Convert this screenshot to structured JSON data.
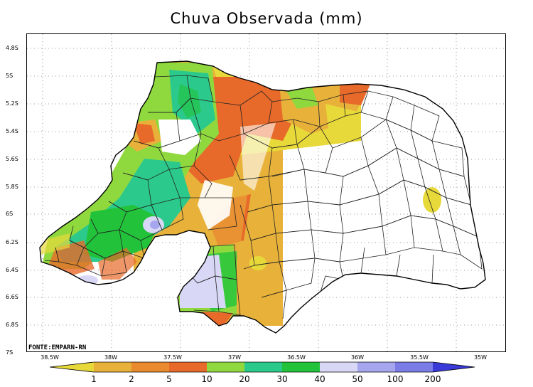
{
  "title": "Chuva Observada (mm)",
  "source": "FONTE:EMPARN-RN",
  "lat_ticks": [
    "4.8S",
    "5S",
    "5.2S",
    "5.4S",
    "5.6S",
    "5.8S",
    "6S",
    "6.2S",
    "6.4S",
    "6.6S",
    "6.8S",
    "7S"
  ],
  "lon_ticks": [
    "38.5W",
    "38W",
    "37.5W",
    "37W",
    "36.5W",
    "36W",
    "35.5W",
    "35W"
  ],
  "colorbar": {
    "labels": [
      "1",
      "2",
      "5",
      "10",
      "20",
      "30",
      "40",
      "50",
      "100",
      "200"
    ],
    "colors": [
      "#e8d93a",
      "#e8b23a",
      "#e98a2e",
      "#e86a2a",
      "#8fd93f",
      "#2cc98c",
      "#22c33b",
      "#d8d8f6",
      "#a6a6ee",
      "#7c7ce6",
      "#3a3ad8"
    ]
  },
  "map_colors": {
    "c1_2": "#e8d93a",
    "c2_5": "#e8b23a",
    "c5_10": "#e98a2e",
    "c10_20": "#e86a2a",
    "c20_30": "#8fd93f",
    "c30_40": "#2cc98c",
    "c40_50": "#22c33b",
    "c50_100": "#d8d8f6",
    "c100_200": "#a6a6ee"
  }
}
